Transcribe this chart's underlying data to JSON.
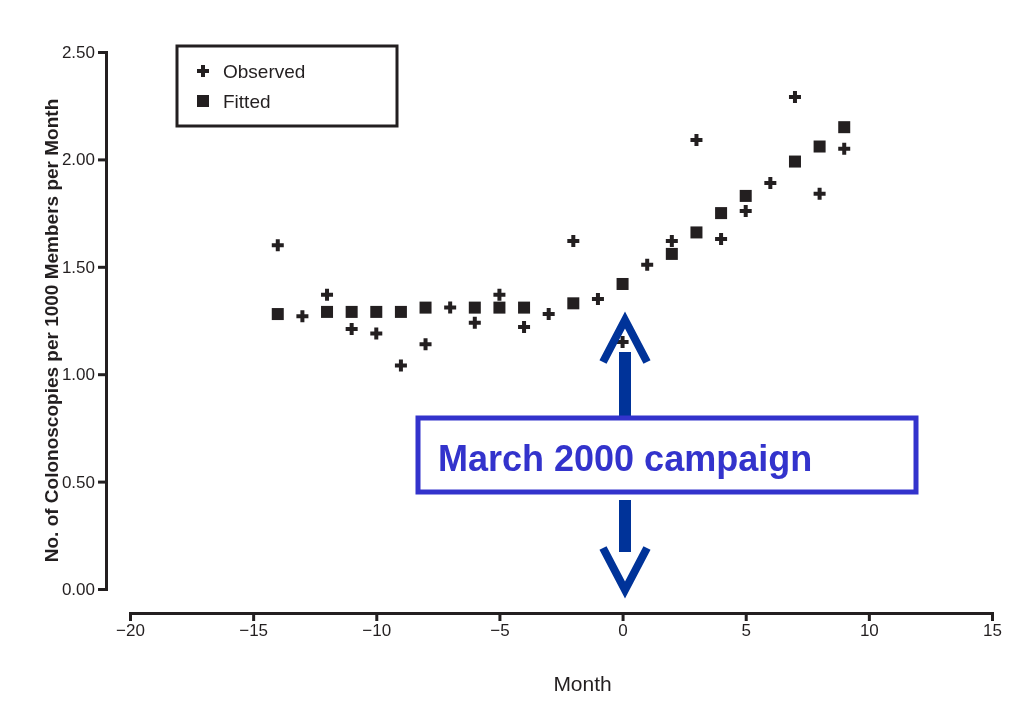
{
  "chart_data": {
    "type": "scatter",
    "xlabel": "Month",
    "ylabel": "No. of Colonoscopies per 1000 Members per Month",
    "xlim": [
      -20,
      15
    ],
    "xticks": [
      {
        "value": -20,
        "label": "−20"
      },
      {
        "value": -15,
        "label": "−15"
      },
      {
        "value": -10,
        "label": "−10"
      },
      {
        "value": -5,
        "label": "−5"
      },
      0,
      5,
      10,
      15
    ],
    "ylim": [
      0,
      2.5
    ],
    "yticks": [
      {
        "value": 0,
        "label": "0.00"
      },
      {
        "value": 0.5,
        "label": "0.50"
      },
      {
        "value": 1,
        "label": "1.00"
      },
      {
        "value": 1.5,
        "label": "1.50"
      },
      {
        "value": 2,
        "label": "2.00"
      },
      {
        "value": 2.5,
        "label": "2.50"
      }
    ],
    "grid": false,
    "legend": "top left",
    "annotations": [
      "March 2000 campaign"
    ],
    "series": [
      {
        "name": "Observed",
        "color": "#231f20",
        "marker": "cross",
        "x": [
          -14,
          -13,
          -12,
          -11,
          -10,
          -9,
          -8,
          -7,
          -6,
          -5,
          -4,
          -3,
          -2,
          -1,
          0,
          1,
          2,
          3,
          4,
          5,
          6,
          7,
          8,
          9
        ],
        "values": [
          1.6,
          1.27,
          1.37,
          1.21,
          1.19,
          1.04,
          1.14,
          1.31,
          1.24,
          1.37,
          1.22,
          1.28,
          1.62,
          1.35,
          1.15,
          1.51,
          1.62,
          2.09,
          1.63,
          1.76,
          1.89,
          2.29,
          1.84,
          2.05
        ]
      },
      {
        "name": "Fitted",
        "color": "#231f20",
        "marker": "square",
        "x": [
          -14,
          -12,
          -11,
          -10,
          -9,
          -8,
          -6,
          -5,
          -4,
          -2,
          0,
          2,
          3,
          4,
          5,
          7,
          8,
          9
        ],
        "values": [
          1.28,
          1.29,
          1.29,
          1.29,
          1.29,
          1.31,
          1.31,
          1.31,
          1.31,
          1.33,
          1.42,
          1.56,
          1.66,
          1.75,
          1.83,
          1.99,
          2.06,
          2.15
        ]
      }
    ]
  }
}
